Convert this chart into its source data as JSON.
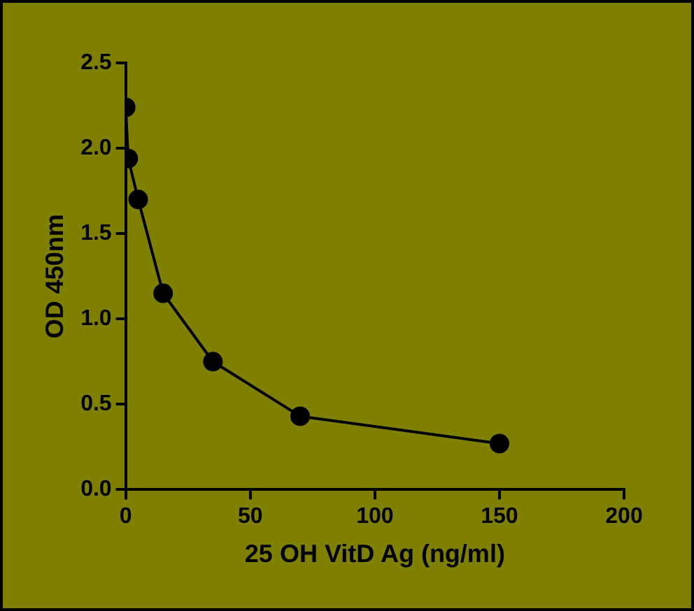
{
  "chart_data": {
    "type": "line",
    "xlabel": "25 OH VitD Ag (ng/ml)",
    "ylabel": "OD 450nm",
    "x": [
      0,
      1,
      5,
      15,
      35,
      70,
      150
    ],
    "series": [
      {
        "color": "#000000",
        "values": [
          2.24,
          1.94,
          1.7,
          1.15,
          0.75,
          0.43,
          0.27
        ]
      }
    ],
    "xlim": [
      0,
      200
    ],
    "xticks": [
      0,
      50,
      100,
      150,
      200
    ],
    "ylim": [
      0,
      2.5
    ],
    "yticks": [
      {
        "value": 0,
        "label": "0.0"
      },
      {
        "value": 0.5,
        "label": "0.5"
      },
      {
        "value": 1,
        "label": "1.0"
      },
      {
        "value": 1.5,
        "label": "1.5"
      },
      {
        "value": 2,
        "label": "2.0"
      },
      {
        "value": 2.5,
        "label": "2.5"
      }
    ],
    "marker": "circle",
    "line_style": "solid",
    "legend": false
  }
}
